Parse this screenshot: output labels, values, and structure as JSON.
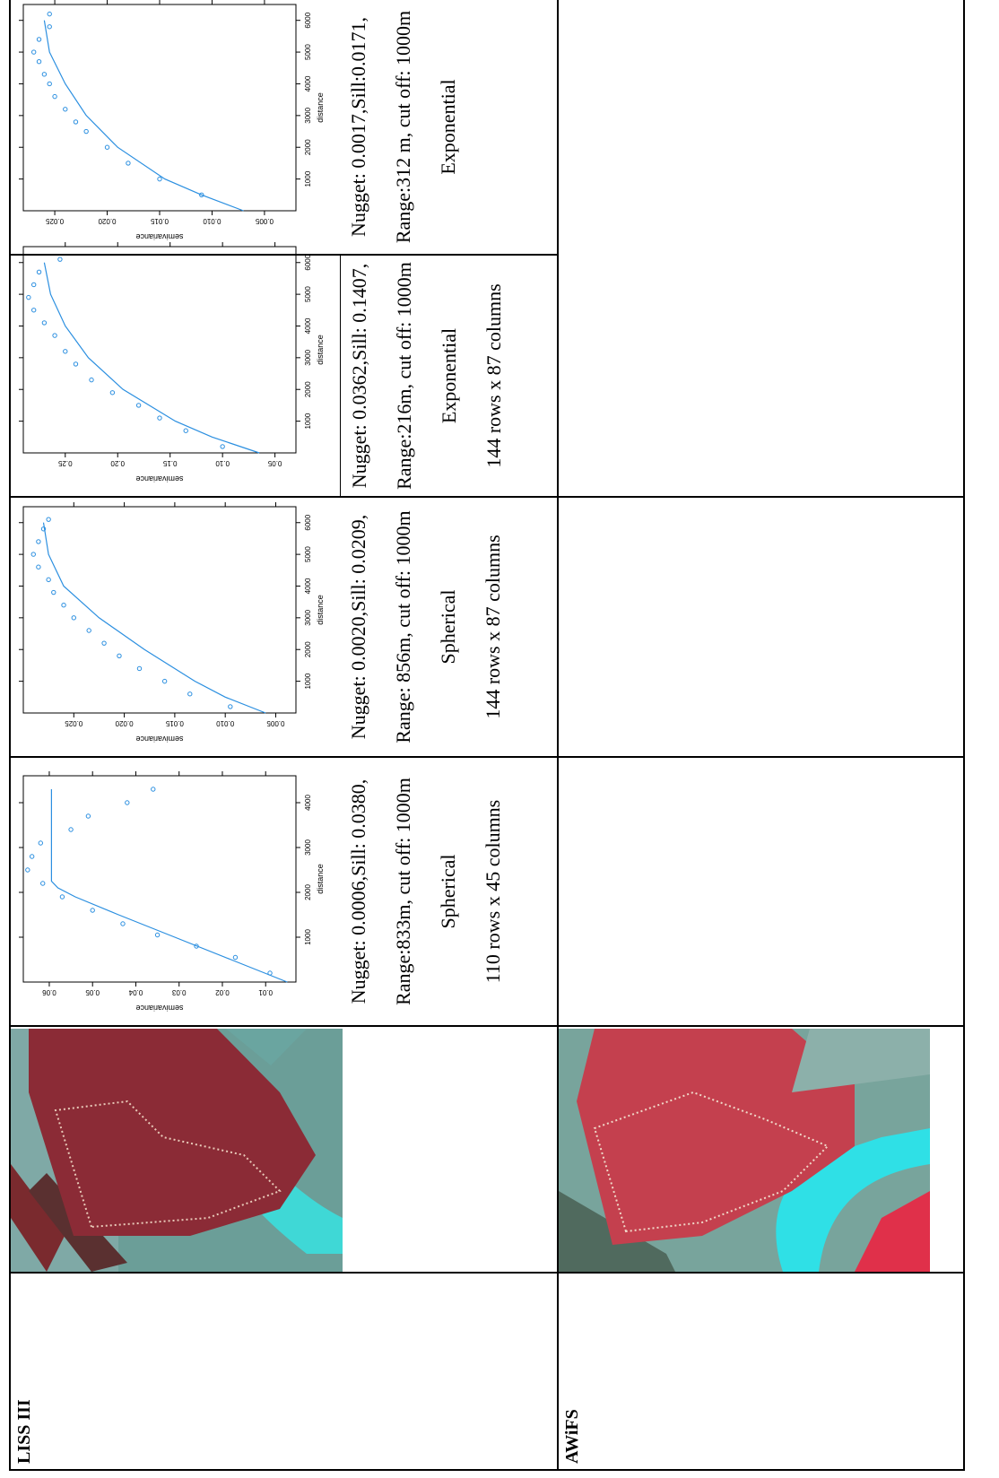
{
  "table": {
    "rows": [
      {
        "label": "LISS III",
        "cells": [
          {
            "plot": {
              "type": "scatter",
              "xlabel": "distance",
              "ylabel": "semivariance",
              "color": "#2b8fe0",
              "xlim": [
                0,
                4600
              ],
              "ylim": [
                0.003,
                0.066
              ],
              "xticks": [
                1000,
                2000,
                3000,
                4000
              ],
              "yticks": [
                0.01,
                0.02,
                0.03,
                0.04,
                0.05,
                0.06
              ],
              "points": {
                "x": [
                  200,
                  550,
                  800,
                  1050,
                  1300,
                  1600,
                  1900,
                  2200,
                  2500,
                  2800,
                  3100,
                  3400,
                  3700,
                  4000,
                  4300
                ],
                "y": [
                  0.009,
                  0.017,
                  0.026,
                  0.035,
                  0.043,
                  0.05,
                  0.057,
                  0.0615,
                  0.065,
                  0.064,
                  0.062,
                  0.055,
                  0.051,
                  0.042,
                  0.036
                ]
              },
              "fit": {
                "x": [
                  0,
                  500,
                  1000,
                  1500,
                  1900,
                  2100,
                  2250,
                  4300
                ],
                "y": [
                  0.005,
                  0.018,
                  0.031,
                  0.044,
                  0.054,
                  0.058,
                  0.0595,
                  0.0595
                ]
              }
            },
            "lines": [
              "Nugget: 0.0006,Sill: 0.0380,",
              "Range:833m, cut off: 1000m",
              "Spherical",
              "110 rows x 45 columns"
            ]
          },
          {
            "plot": {
              "type": "scatter",
              "xlabel": "distance",
              "ylabel": "semivariance",
              "color": "#2b8fe0",
              "xlim": [
                0,
                6500
              ],
              "ylim": [
                0.003,
                0.03
              ],
              "xticks": [
                1000,
                2000,
                3000,
                4000,
                5000,
                6000
              ],
              "yticks": [
                0.005,
                {
                  "value": 0.01,
                  "label": "0.010"
                },
                0.015,
                {
                  "value": 0.02,
                  "label": "0.020"
                },
                0.025
              ],
              "points": {
                "x": [
                  200,
                  600,
                  1000,
                  1400,
                  1800,
                  2200,
                  2600,
                  3000,
                  3400,
                  3800,
                  4200,
                  4600,
                  5000,
                  5400,
                  5800,
                  6100
                ],
                "y": [
                  0.0095,
                  0.0135,
                  0.016,
                  0.0185,
                  0.0205,
                  0.022,
                  0.0235,
                  0.025,
                  0.026,
                  0.027,
                  0.0275,
                  0.0285,
                  0.029,
                  0.0285,
                  0.028,
                  0.0275
                ]
              },
              "fit": {
                "x": [
                  0,
                  500,
                  1000,
                  2000,
                  3000,
                  4000,
                  5000,
                  6000
                ],
                "y": [
                  0.006,
                  0.01,
                  0.013,
                  0.018,
                  0.0225,
                  0.026,
                  0.0275,
                  0.028
                ]
              }
            },
            "lines": [
              "Nugget: 0.0020,Sill: 0.0209,",
              "Range: 856m, cut off: 1000m",
              "Spherical",
              "144 rows x 87 columns"
            ]
          },
          {
            "plot": {
              "type": "scatter",
              "xlabel": "distance",
              "ylabel": "semivariance",
              "color": "#2b8fe0",
              "xlim": [
                0,
                6500
              ],
              "ylim": [
                0.03,
                0.29
              ],
              "xticks": [
                1000,
                2000,
                3000,
                4000,
                5000,
                6000
              ],
              "yticks": [
                0.05,
                {
                  "value": 0.1,
                  "label": "0.10"
                },
                0.15,
                {
                  "value": 0.2,
                  "label": "0.20"
                },
                0.25
              ],
              "points": {
                "x": [
                  200,
                  700,
                  1100,
                  1500,
                  1900,
                  2300,
                  2800,
                  3200,
                  3700,
                  4100,
                  4500,
                  4900,
                  5300,
                  5700,
                  6100
                ],
                "y": [
                  0.1,
                  0.135,
                  0.16,
                  0.18,
                  0.205,
                  0.225,
                  0.24,
                  0.25,
                  0.26,
                  0.27,
                  0.28,
                  0.285,
                  0.28,
                  0.275,
                  0.255
                ]
              },
              "fit": {
                "x": [
                  0,
                  500,
                  1000,
                  2000,
                  3000,
                  4000,
                  5000,
                  6000
                ],
                "y": [
                  0.065,
                  0.11,
                  0.145,
                  0.195,
                  0.228,
                  0.25,
                  0.264,
                  0.27
                ]
              }
            },
            "lines": [
              "Nugget: 0.0362,Sill: 0.1407,",
              "Range:216m, cut off: 1000m",
              "Exponential",
              "144 rows x 87 columns"
            ]
          },
          {
            "plot": {
              "type": "scatter",
              "xlabel": "distance",
              "ylabel": "semivariance",
              "color": "#2b8fe0",
              "xlim": [
                0,
                6500
              ],
              "ylim": [
                0.002,
                0.028
              ],
              "xticks": [
                1000,
                2000,
                3000,
                4000,
                5000,
                6000
              ],
              "yticks": [
                0.005,
                {
                  "value": 0.01,
                  "label": "0.010"
                },
                0.015,
                {
                  "value": 0.02,
                  "label": "0.020"
                },
                0.025
              ],
              "points": {
                "x": [
                  500,
                  1000,
                  1500,
                  2000,
                  2500,
                  2800,
                  3200,
                  3600,
                  4000,
                  4300,
                  4700,
                  5000,
                  5400,
                  5800,
                  6200
                ],
                "y": [
                  0.011,
                  0.015,
                  0.018,
                  0.02,
                  0.022,
                  0.023,
                  0.024,
                  0.025,
                  0.0255,
                  0.026,
                  0.0265,
                  0.027,
                  0.0265,
                  0.0255,
                  0.0255
                ]
              },
              "fit": {
                "x": [
                  0,
                  500,
                  1000,
                  2000,
                  3000,
                  4000,
                  5000,
                  6000
                ],
                "y": [
                  0.007,
                  0.011,
                  0.0145,
                  0.019,
                  0.022,
                  0.024,
                  0.0255,
                  0.026
                ]
              }
            },
            "lines": [
              "Nugget: 0.0017,Sill:0.0171,",
              "Range:312 m, cut off: 1000m",
              "Exponential"
            ]
          }
        ]
      },
      {
        "label": "AWiFS"
      }
    ]
  }
}
